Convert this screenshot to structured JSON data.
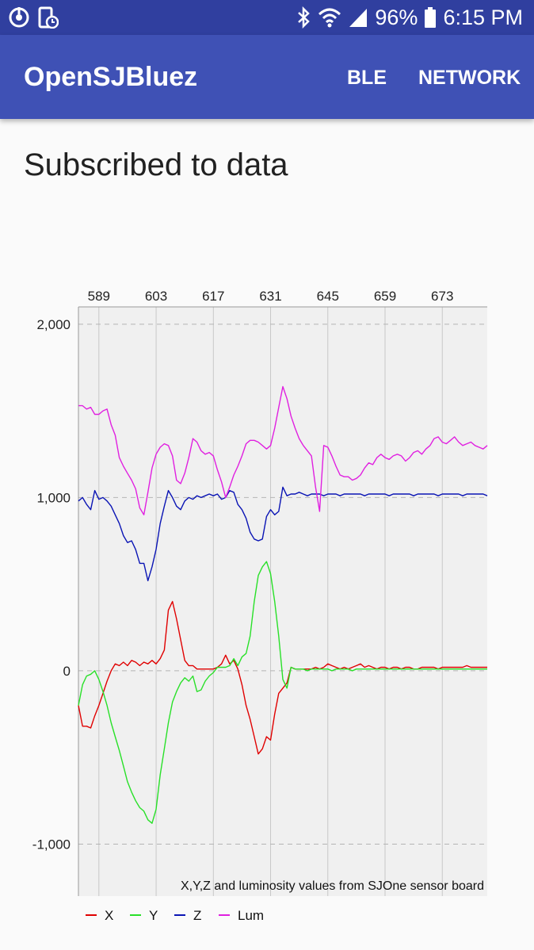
{
  "status_bar": {
    "battery_percent": "96%",
    "time": "6:15 PM",
    "left_icons": [
      "sync-icon",
      "device-schedule-icon"
    ],
    "right_icons": [
      "bluetooth-icon",
      "wifi-icon",
      "signal-icon",
      "battery-icon"
    ]
  },
  "app_bar": {
    "title": "OpenSJBluez",
    "menu": [
      {
        "label": "BLE"
      },
      {
        "label": "NETWORK"
      }
    ]
  },
  "main": {
    "heading": "Subscribed to data"
  },
  "chart_data": {
    "type": "line",
    "description": "X,Y,Z and luminosity values from SJOne sensor board",
    "x_tick_labels": [
      "589",
      "603",
      "617",
      "631",
      "645",
      "659",
      "673"
    ],
    "x_ticks": [
      589,
      603,
      617,
      631,
      645,
      659,
      673
    ],
    "xlim": [
      584,
      684
    ],
    "ylim": [
      -1300,
      2100
    ],
    "y_ticks": [
      2000,
      1000,
      0,
      -1000
    ],
    "y_tick_labels": [
      "2,000",
      "1,000",
      "0",
      "-1,000"
    ],
    "grid": true,
    "legend_position": "bottom-left",
    "series": [
      {
        "name": "X",
        "color": "#e00000",
        "x": [
          584,
          585,
          586,
          587,
          588,
          589,
          590,
          591,
          592,
          593,
          594,
          595,
          596,
          597,
          598,
          599,
          600,
          601,
          602,
          603,
          604,
          605,
          606,
          607,
          608,
          609,
          610,
          611,
          612,
          613,
          614,
          615,
          616,
          617,
          618,
          619,
          620,
          621,
          622,
          623,
          624,
          625,
          626,
          627,
          628,
          629,
          630,
          631,
          632,
          633,
          634,
          635,
          636,
          637,
          638,
          639,
          640,
          641,
          642,
          643,
          644,
          645,
          646,
          647,
          648,
          649,
          650,
          651,
          652,
          653,
          654,
          655,
          656,
          657,
          658,
          659,
          660,
          661,
          662,
          663,
          664,
          665,
          666,
          667,
          668,
          669,
          670,
          671,
          672,
          673,
          674,
          675,
          676,
          677,
          678,
          679,
          680,
          681,
          682,
          683,
          684
        ],
        "values": [
          -200,
          -320,
          -320,
          -330,
          -260,
          -200,
          -130,
          -60,
          0,
          40,
          30,
          50,
          30,
          60,
          50,
          30,
          50,
          40,
          60,
          40,
          70,
          120,
          350,
          400,
          300,
          180,
          60,
          30,
          30,
          10,
          10,
          10,
          10,
          10,
          20,
          40,
          90,
          40,
          60,
          10,
          -80,
          -200,
          -280,
          -380,
          -480,
          -450,
          -380,
          -400,
          -250,
          -130,
          -100,
          -70,
          20,
          10,
          10,
          10,
          10,
          10,
          20,
          10,
          20,
          40,
          30,
          20,
          10,
          20,
          10,
          20,
          30,
          40,
          20,
          30,
          20,
          10,
          20,
          20,
          10,
          20,
          20,
          10,
          20,
          20,
          10,
          10,
          20,
          20,
          20,
          20,
          10,
          20,
          20,
          20,
          20,
          20,
          20,
          30,
          20,
          20,
          20,
          20,
          20
        ]
      },
      {
        "name": "Y",
        "color": "#28e028",
        "x": [
          584,
          585,
          586,
          587,
          588,
          589,
          590,
          591,
          592,
          593,
          594,
          595,
          596,
          597,
          598,
          599,
          600,
          601,
          602,
          603,
          604,
          605,
          606,
          607,
          608,
          609,
          610,
          611,
          612,
          613,
          614,
          615,
          616,
          617,
          618,
          619,
          620,
          621,
          622,
          623,
          624,
          625,
          626,
          627,
          628,
          629,
          630,
          631,
          632,
          633,
          634,
          635,
          636,
          637,
          638,
          639,
          640,
          641,
          642,
          643,
          644,
          645,
          646,
          647,
          648,
          649,
          650,
          651,
          652,
          653,
          654,
          655,
          656,
          657,
          658,
          659,
          660,
          661,
          662,
          663,
          664,
          665,
          666,
          667,
          668,
          669,
          670,
          671,
          672,
          673,
          674,
          675,
          676,
          677,
          678,
          679,
          680,
          681,
          682,
          683,
          684
        ],
        "values": [
          -200,
          -80,
          -30,
          -20,
          0,
          -50,
          -120,
          -200,
          -300,
          -380,
          -460,
          -550,
          -640,
          -700,
          -750,
          -790,
          -810,
          -860,
          -880,
          -800,
          -600,
          -450,
          -300,
          -180,
          -120,
          -70,
          -40,
          -60,
          -30,
          -120,
          -110,
          -60,
          -30,
          -10,
          20,
          20,
          20,
          30,
          70,
          30,
          80,
          100,
          200,
          400,
          550,
          600,
          630,
          560,
          400,
          200,
          -50,
          -100,
          20,
          10,
          10,
          10,
          0,
          10,
          10,
          10,
          10,
          10,
          0,
          10,
          10,
          10,
          10,
          0,
          10,
          10,
          10,
          10,
          10,
          10,
          10,
          10,
          10,
          10,
          10,
          10,
          10,
          10,
          10,
          10,
          10,
          10,
          10,
          10,
          10,
          10,
          10,
          10,
          10,
          10,
          10,
          10,
          10,
          10,
          10,
          10,
          10
        ]
      },
      {
        "name": "Z",
        "color": "#0a14b4",
        "x": [
          584,
          585,
          586,
          587,
          588,
          589,
          590,
          591,
          592,
          593,
          594,
          595,
          596,
          597,
          598,
          599,
          600,
          601,
          602,
          603,
          604,
          605,
          606,
          607,
          608,
          609,
          610,
          611,
          612,
          613,
          614,
          615,
          616,
          617,
          618,
          619,
          620,
          621,
          622,
          623,
          624,
          625,
          626,
          627,
          628,
          629,
          630,
          631,
          632,
          633,
          634,
          635,
          636,
          637,
          638,
          639,
          640,
          641,
          642,
          643,
          644,
          645,
          646,
          647,
          648,
          649,
          650,
          651,
          652,
          653,
          654,
          655,
          656,
          657,
          658,
          659,
          660,
          661,
          662,
          663,
          664,
          665,
          666,
          667,
          668,
          669,
          670,
          671,
          672,
          673,
          674,
          675,
          676,
          677,
          678,
          679,
          680,
          681,
          682,
          683,
          684
        ],
        "values": [
          980,
          1000,
          960,
          930,
          1040,
          990,
          1000,
          980,
          950,
          900,
          850,
          780,
          740,
          750,
          700,
          620,
          620,
          520,
          600,
          700,
          850,
          950,
          1040,
          1000,
          950,
          930,
          980,
          1000,
          990,
          1010,
          1000,
          1010,
          1020,
          1010,
          1020,
          990,
          1000,
          1040,
          1030,
          960,
          930,
          880,
          800,
          760,
          750,
          760,
          890,
          930,
          900,
          920,
          1060,
          1010,
          1020,
          1020,
          1030,
          1020,
          1010,
          1020,
          1020,
          1020,
          1010,
          1020,
          1020,
          1020,
          1010,
          1020,
          1020,
          1020,
          1020,
          1020,
          1010,
          1020,
          1020,
          1020,
          1020,
          1020,
          1010,
          1020,
          1020,
          1020,
          1020,
          1020,
          1010,
          1020,
          1020,
          1020,
          1020,
          1020,
          1010,
          1020,
          1020,
          1020,
          1020,
          1020,
          1010,
          1020,
          1020,
          1020,
          1020,
          1020,
          1010
        ]
      },
      {
        "name": "Lum",
        "color": "#e020e0",
        "x": [
          584,
          585,
          586,
          587,
          588,
          589,
          590,
          591,
          592,
          593,
          594,
          595,
          596,
          597,
          598,
          599,
          600,
          601,
          602,
          603,
          604,
          605,
          606,
          607,
          608,
          609,
          610,
          611,
          612,
          613,
          614,
          615,
          616,
          617,
          618,
          619,
          620,
          621,
          622,
          623,
          624,
          625,
          626,
          627,
          628,
          629,
          630,
          631,
          632,
          633,
          634,
          635,
          636,
          637,
          638,
          639,
          640,
          641,
          642,
          643,
          644,
          645,
          646,
          647,
          648,
          649,
          650,
          651,
          652,
          653,
          654,
          655,
          656,
          657,
          658,
          659,
          660,
          661,
          662,
          663,
          664,
          665,
          666,
          667,
          668,
          669,
          670,
          671,
          672,
          673,
          674,
          675,
          676,
          677,
          678,
          679,
          680,
          681,
          682,
          683,
          684
        ],
        "values": [
          1530,
          1530,
          1510,
          1520,
          1480,
          1480,
          1500,
          1510,
          1420,
          1360,
          1230,
          1180,
          1140,
          1100,
          1050,
          940,
          900,
          1030,
          1170,
          1250,
          1290,
          1310,
          1300,
          1240,
          1100,
          1080,
          1140,
          1230,
          1340,
          1320,
          1270,
          1250,
          1260,
          1240,
          1160,
          1090,
          1000,
          1060,
          1130,
          1180,
          1240,
          1310,
          1330,
          1330,
          1320,
          1300,
          1280,
          1300,
          1400,
          1520,
          1640,
          1570,
          1470,
          1400,
          1340,
          1300,
          1270,
          1240,
          1060,
          920,
          1300,
          1290,
          1240,
          1180,
          1130,
          1120,
          1120,
          1100,
          1110,
          1130,
          1170,
          1200,
          1190,
          1230,
          1250,
          1230,
          1220,
          1240,
          1250,
          1240,
          1210,
          1230,
          1260,
          1270,
          1250,
          1280,
          1300,
          1340,
          1350,
          1320,
          1310,
          1330,
          1350,
          1320,
          1300,
          1310,
          1320,
          1300,
          1290,
          1280,
          1300
        ]
      }
    ]
  }
}
